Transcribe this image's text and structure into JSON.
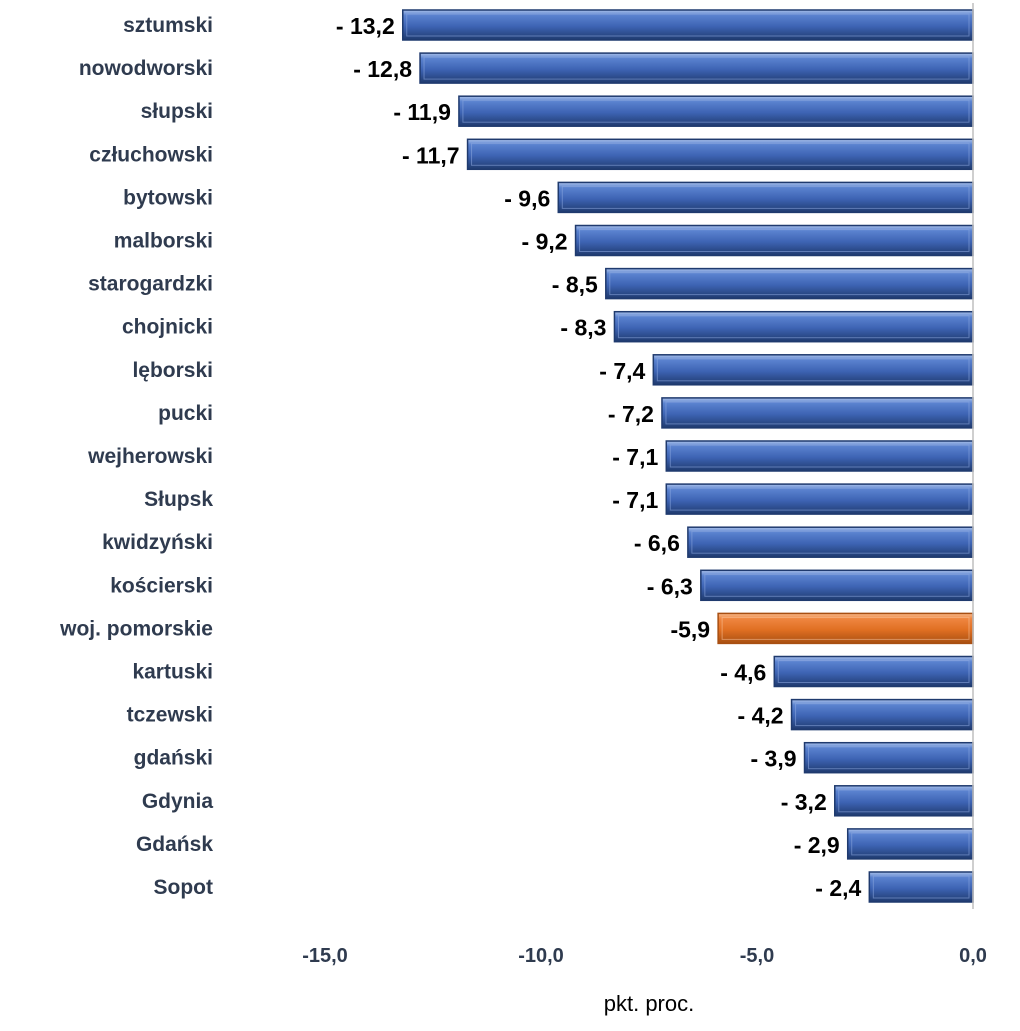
{
  "chart_data": {
    "type": "bar",
    "orientation": "horizontal",
    "categories": [
      "sztumski",
      "nowodworski",
      "słupski",
      "człuchowski",
      "bytowski",
      "malborski",
      "starogardzki",
      "chojnicki",
      "lęborski",
      "pucki",
      "wejherowski",
      "Słupsk",
      "kwidzyński",
      "kościerski",
      "woj. pomorskie",
      "kartuski",
      "tczewski",
      "gdański",
      "Gdynia",
      "Gdańsk",
      "Sopot"
    ],
    "values": [
      -13.2,
      -12.8,
      -11.9,
      -11.7,
      -9.6,
      -9.2,
      -8.5,
      -8.3,
      -7.4,
      -7.2,
      -7.1,
      -7.1,
      -6.6,
      -6.3,
      -5.9,
      -4.6,
      -4.2,
      -3.9,
      -3.2,
      -2.9,
      -2.4
    ],
    "value_labels": [
      "- 13,2",
      "- 12,8",
      "- 11,9",
      "- 11,7",
      "- 9,6",
      "- 9,2",
      "- 8,5",
      "- 8,3",
      "- 7,4",
      "- 7,2",
      "- 7,1",
      "- 7,1",
      "- 6,6",
      "- 6,3",
      "-5,9",
      "- 4,6",
      "- 4,2",
      "- 3,9",
      "- 3,2",
      "- 2,9",
      "- 2,4"
    ],
    "highlight_category": "woj. pomorskie",
    "xlabel": "pkt. proc.",
    "xlim": [
      -15,
      0
    ],
    "x_ticks": [
      -15,
      -10,
      -5,
      0
    ],
    "x_tick_labels": [
      "-15,0",
      "-10,0",
      "-5,0",
      "0,0"
    ],
    "grid": false,
    "colors": {
      "bar": "#4470c4",
      "bar_dark": "#1f3a6e",
      "highlight": "#ed7d31",
      "highlight_dark": "#a84f12"
    }
  }
}
